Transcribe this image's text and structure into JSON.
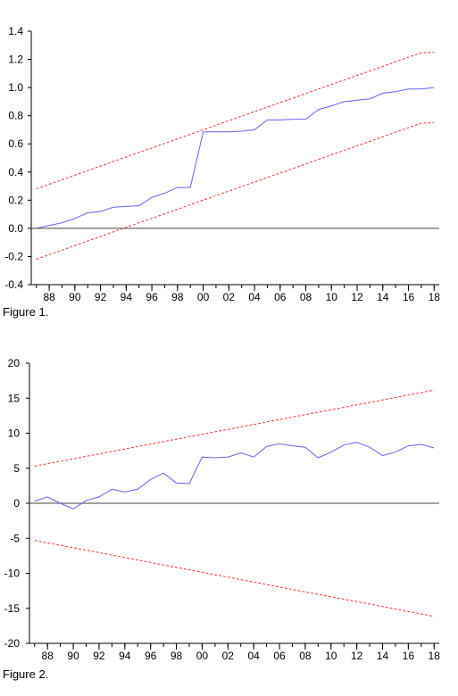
{
  "figures": [
    {
      "caption": "Figure 1."
    },
    {
      "caption": "Figure 2."
    }
  ],
  "colors": {
    "series": "#6464ee",
    "bands": "#e83c3c",
    "axis": "#000000",
    "zero": "#444444"
  },
  "chart_data": [
    {
      "type": "line",
      "title": "",
      "xlabel": "",
      "ylabel": "",
      "x": [
        1987,
        1988,
        1989,
        1990,
        1991,
        1992,
        1993,
        1994,
        1995,
        1996,
        1997,
        1998,
        1999,
        2000,
        2001,
        2002,
        2003,
        2004,
        2005,
        2006,
        2007,
        2008,
        2009,
        2010,
        2011,
        2012,
        2013,
        2014,
        2015,
        2016,
        2017,
        2018
      ],
      "x_ticks": [
        1988,
        1990,
        1992,
        1994,
        1996,
        1998,
        2000,
        2002,
        2004,
        2006,
        2008,
        2010,
        2012,
        2014,
        2016,
        2018
      ],
      "x_tick_labels": [
        "88",
        "90",
        "92",
        "94",
        "96",
        "98",
        "00",
        "02",
        "04",
        "06",
        "08",
        "10",
        "12",
        "14",
        "16",
        "18"
      ],
      "xlim": [
        1986.6,
        2018.4
      ],
      "ylim": [
        -0.4,
        1.4
      ],
      "y_ticks": [
        -0.4,
        -0.2,
        0.0,
        0.2,
        0.4,
        0.6,
        0.8,
        1.0,
        1.2,
        1.4
      ],
      "y_tick_labels": [
        "-0.4",
        "-0.2",
        "0.0",
        "0.2",
        "0.4",
        "0.6",
        "0.8",
        "1.0",
        "1.2",
        "1.4"
      ],
      "zero_line": 0,
      "grid": false,
      "series": [
        {
          "values": [
            0.0,
            0.02,
            0.04,
            0.07,
            0.11,
            0.12,
            0.15,
            0.155,
            0.16,
            0.22,
            0.25,
            0.29,
            0.29,
            0.685,
            0.685,
            0.685,
            0.69,
            0.7,
            0.77,
            0.77,
            0.775,
            0.775,
            0.845,
            0.87,
            0.9,
            0.91,
            0.92,
            0.96,
            0.97,
            0.99,
            0.99,
            1.0
          ],
          "style": "solid"
        },
        {
          "values": [
            0.28,
            0.313,
            0.345,
            0.378,
            0.41,
            0.442,
            0.475,
            0.507,
            0.539,
            0.571,
            0.603,
            0.635,
            0.668,
            0.7,
            0.732,
            0.764,
            0.797,
            0.829,
            0.861,
            0.893,
            0.925,
            0.957,
            0.99,
            1.022,
            1.054,
            1.086,
            1.118,
            1.15,
            1.183,
            1.215,
            1.247,
            1.25
          ],
          "style": "dashed"
        },
        {
          "values": [
            -0.22,
            -0.187,
            -0.155,
            -0.122,
            -0.09,
            -0.058,
            -0.025,
            0.007,
            0.039,
            0.071,
            0.103,
            0.135,
            0.168,
            0.2,
            0.232,
            0.264,
            0.297,
            0.329,
            0.361,
            0.393,
            0.425,
            0.457,
            0.49,
            0.522,
            0.554,
            0.586,
            0.618,
            0.65,
            0.683,
            0.715,
            0.747,
            0.75
          ],
          "style": "dashed"
        }
      ]
    },
    {
      "type": "line",
      "title": "",
      "xlabel": "",
      "ylabel": "",
      "x": [
        1987,
        1988,
        1989,
        1990,
        1991,
        1992,
        1993,
        1994,
        1995,
        1996,
        1997,
        1998,
        1999,
        2000,
        2001,
        2002,
        2003,
        2004,
        2005,
        2006,
        2007,
        2008,
        2009,
        2010,
        2011,
        2012,
        2013,
        2014,
        2015,
        2016,
        2017,
        2018
      ],
      "x_ticks": [
        1988,
        1990,
        1992,
        1994,
        1996,
        1998,
        2000,
        2002,
        2004,
        2006,
        2008,
        2010,
        2012,
        2014,
        2016,
        2018
      ],
      "x_tick_labels": [
        "88",
        "90",
        "92",
        "94",
        "96",
        "98",
        "00",
        "02",
        "04",
        "06",
        "08",
        "10",
        "12",
        "14",
        "16",
        "18"
      ],
      "xlim": [
        1986.6,
        2018.4
      ],
      "ylim": [
        -20,
        20
      ],
      "y_ticks": [
        -20,
        -15,
        -10,
        -5,
        0,
        5,
        10,
        15,
        20
      ],
      "y_tick_labels": [
        "-20",
        "-15",
        "-10",
        "-5",
        "0",
        "5",
        "10",
        "15",
        "20"
      ],
      "zero_line": 0,
      "grid": false,
      "series": [
        {
          "values": [
            0.3,
            0.9,
            0.0,
            -0.8,
            0.4,
            0.9,
            2.0,
            1.6,
            2.0,
            3.4,
            4.3,
            2.9,
            2.8,
            6.6,
            6.5,
            6.6,
            7.2,
            6.6,
            8.1,
            8.5,
            8.2,
            8.0,
            6.5,
            7.3,
            8.3,
            8.7,
            8.0,
            6.8,
            7.3,
            8.2,
            8.4,
            7.9
          ],
          "style": "solid"
        },
        {
          "values": [
            5.3,
            5.65,
            6.0,
            6.35,
            6.7,
            7.05,
            7.4,
            7.75,
            8.1,
            8.45,
            8.8,
            9.15,
            9.5,
            9.85,
            10.2,
            10.55,
            10.9,
            11.25,
            11.6,
            11.95,
            12.3,
            12.65,
            13.0,
            13.35,
            13.7,
            14.05,
            14.4,
            14.75,
            15.1,
            15.45,
            15.8,
            16.15
          ],
          "style": "dashed"
        },
        {
          "values": [
            -5.3,
            -5.65,
            -6.0,
            -6.35,
            -6.7,
            -7.05,
            -7.4,
            -7.75,
            -8.1,
            -8.45,
            -8.8,
            -9.15,
            -9.5,
            -9.85,
            -10.2,
            -10.55,
            -10.9,
            -11.25,
            -11.6,
            -11.95,
            -12.3,
            -12.65,
            -13.0,
            -13.35,
            -13.7,
            -14.05,
            -14.4,
            -14.75,
            -15.1,
            -15.45,
            -15.8,
            -16.15
          ],
          "style": "dashed"
        }
      ]
    }
  ]
}
